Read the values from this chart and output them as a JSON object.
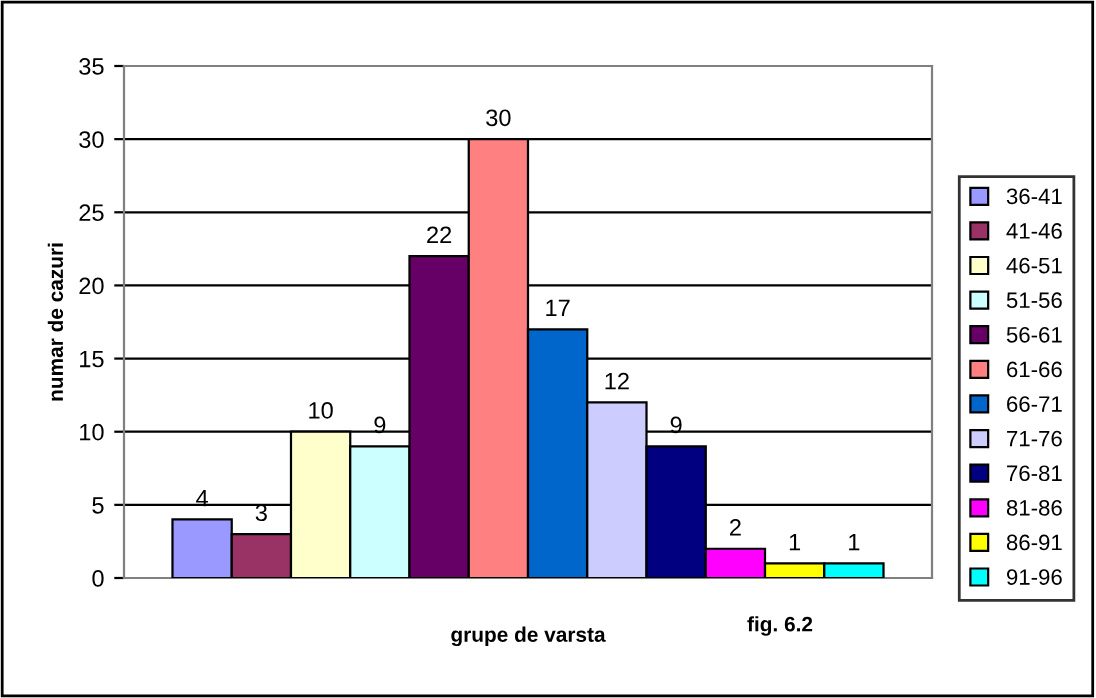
{
  "chart_data": {
    "type": "bar",
    "xlabel": "grupe de varsta",
    "ylabel": "numar de cazuri",
    "annotations": [
      "fig. 6.2"
    ],
    "categories": [
      null
    ],
    "series": [
      {
        "name": "36-41",
        "color": "#9999ff",
        "values": [
          4
        ]
      },
      {
        "name": "41-46",
        "color": "#993366",
        "values": [
          3
        ]
      },
      {
        "name": "46-51",
        "color": "#ffffcc",
        "values": [
          10
        ]
      },
      {
        "name": "51-56",
        "color": "#ccffff",
        "values": [
          9
        ]
      },
      {
        "name": "56-61",
        "color": "#660066",
        "values": [
          22
        ]
      },
      {
        "name": "61-66",
        "color": "#ff8080",
        "values": [
          30
        ]
      },
      {
        "name": "66-71",
        "color": "#0066cc",
        "values": [
          17
        ]
      },
      {
        "name": "71-76",
        "color": "#ccccff",
        "values": [
          12
        ]
      },
      {
        "name": "76-81",
        "color": "#000080",
        "values": [
          9
        ]
      },
      {
        "name": "81-86",
        "color": "#ff00ff",
        "values": [
          2
        ]
      },
      {
        "name": "86-91",
        "color": "#ffff00",
        "values": [
          1
        ]
      },
      {
        "name": "91-96",
        "color": "#00ffff",
        "values": [
          1
        ]
      }
    ],
    "ylim": [
      0,
      35
    ],
    "yticks": [
      0,
      5,
      10,
      15,
      20,
      25,
      30,
      35
    ],
    "grid": "y",
    "legend": "right",
    "data_labels": true
  }
}
